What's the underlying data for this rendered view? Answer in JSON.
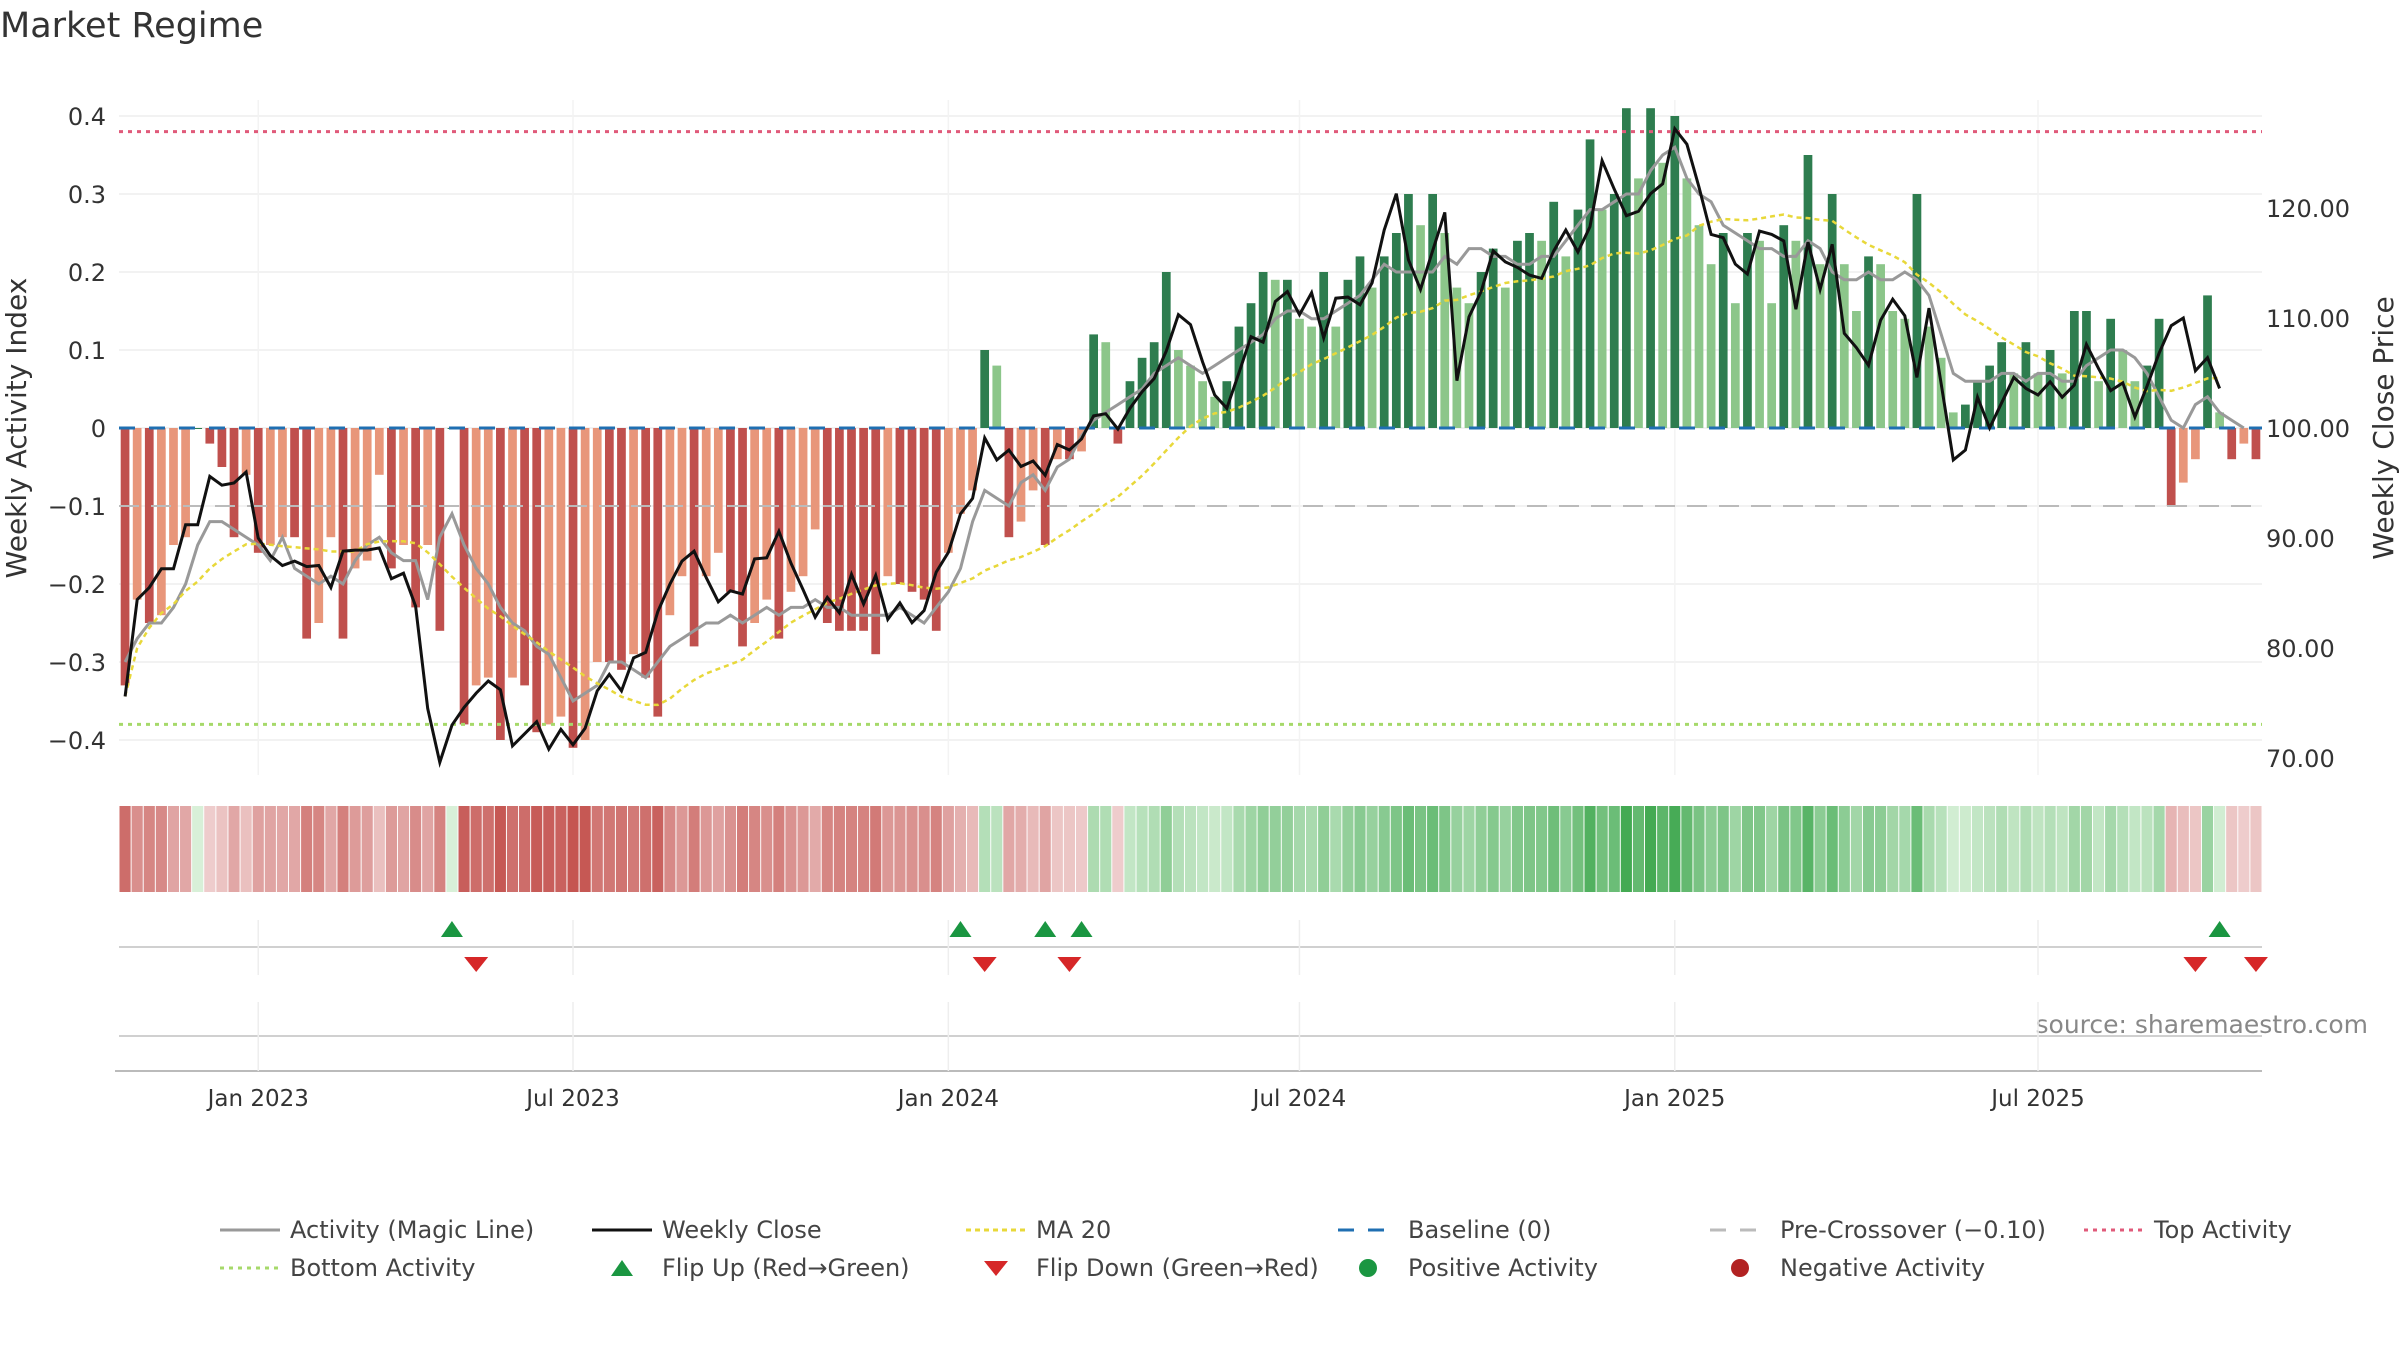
{
  "chart_data": {
    "type": "bar",
    "title": "Market Regime",
    "source": "source: sharemaestro.com",
    "left_axis": {
      "label": "Weekly Activity Index",
      "ticks": [
        "0.4",
        "0.3",
        "0.2",
        "0.1",
        "0",
        "−0.1",
        "−0.2",
        "−0.3",
        "−0.4"
      ],
      "range": [
        -0.45,
        0.45
      ]
    },
    "right_axis": {
      "label": "Weekly Close Price",
      "ticks": [
        "120.00",
        "110.00",
        "100.00",
        "90.00",
        "80.00",
        "70.00"
      ],
      "range": [
        64.8,
        130.8
      ]
    },
    "x_ticks": [
      "Jan 2023",
      "Jul 2023",
      "Jan 2024",
      "Jul 2024",
      "Jan 2025",
      "Jul 2025"
    ],
    "reference_lines": {
      "top_activity": 0.38,
      "bottom_activity": -0.38,
      "pre_crossover": -0.1,
      "baseline": 0
    },
    "colors": {
      "neg_dark": "#c0504d",
      "neg_light": "#e8967a",
      "pos_dark": "#2e7d4f",
      "pos_light": "#8cc68a",
      "close": "#111111",
      "magic": "#999999",
      "ma": "#e8d83a",
      "baseline": "#1f6fb2",
      "top": "#e05a7a",
      "bottom": "#a6d96a",
      "flip_up": "#1a9641",
      "flip_down": "#d62728"
    },
    "activity": [
      -0.33,
      -0.22,
      -0.25,
      -0.24,
      -0.15,
      -0.14,
      0.0,
      -0.02,
      -0.05,
      -0.14,
      -0.06,
      -0.16,
      -0.15,
      -0.14,
      -0.14,
      -0.27,
      -0.25,
      -0.14,
      -0.27,
      -0.18,
      -0.17,
      -0.06,
      -0.18,
      -0.15,
      -0.23,
      -0.15,
      -0.26,
      0.0,
      -0.38,
      -0.33,
      -0.32,
      -0.4,
      -0.32,
      -0.33,
      -0.39,
      -0.38,
      -0.37,
      -0.41,
      -0.4,
      -0.3,
      -0.3,
      -0.31,
      -0.29,
      -0.32,
      -0.37,
      -0.24,
      -0.19,
      -0.28,
      -0.19,
      -0.16,
      -0.21,
      -0.28,
      -0.25,
      -0.22,
      -0.27,
      -0.21,
      -0.19,
      -0.13,
      -0.25,
      -0.26,
      -0.26,
      -0.26,
      -0.29,
      -0.19,
      -0.2,
      -0.21,
      -0.22,
      -0.26,
      -0.16,
      -0.11,
      -0.08,
      0.1,
      0.08,
      -0.14,
      -0.12,
      -0.08,
      -0.15,
      -0.04,
      -0.04,
      -0.03,
      0.12,
      0.11,
      -0.02,
      0.06,
      0.09,
      0.11,
      0.2,
      0.1,
      0.08,
      0.06,
      0.04,
      0.06,
      0.13,
      0.16,
      0.2,
      0.19,
      0.19,
      0.14,
      0.13,
      0.2,
      0.13,
      0.19,
      0.22,
      0.18,
      0.22,
      0.25,
      0.3,
      0.26,
      0.3,
      0.25,
      0.18,
      0.16,
      0.2,
      0.23,
      0.18,
      0.24,
      0.25,
      0.24,
      0.29,
      0.22,
      0.28,
      0.37,
      0.28,
      0.3,
      0.41,
      0.32,
      0.41,
      0.34,
      0.4,
      0.32,
      0.26,
      0.21,
      0.25,
      0.16,
      0.25,
      0.24,
      0.16,
      0.26,
      0.24,
      0.35,
      0.21,
      0.3,
      0.21,
      0.15,
      0.22,
      0.21,
      0.15,
      0.14,
      0.3,
      0.13,
      0.09,
      0.02,
      0.03,
      0.06,
      0.08,
      0.11,
      0.07,
      0.11,
      0.07,
      0.1,
      0.07,
      0.15,
      0.15,
      0.06,
      0.14,
      0.1,
      0.06,
      0.08,
      0.14,
      -0.1,
      -0.07,
      -0.04,
      0.17,
      0.02,
      -0.04,
      -0.02,
      -0.04
    ],
    "weekly_close": [
      75.6,
      84.4,
      85.5,
      87.2,
      87.2,
      91.2,
      91.2,
      95.6,
      94.8,
      95.0,
      96.0,
      90.0,
      88.4,
      87.5,
      87.9,
      87.4,
      87.5,
      85.5,
      88.8,
      88.9,
      88.9,
      89.1,
      86.3,
      86.8,
      83.8,
      74.5,
      69.6,
      73.0,
      74.6,
      75.9,
      77.0,
      76.2,
      71.1,
      72.2,
      73.3,
      70.8,
      72.6,
      71.2,
      72.7,
      76.1,
      77.6,
      76.1,
      79.1,
      79.6,
      83.3,
      85.8,
      87.9,
      88.8,
      86.4,
      84.2,
      85.2,
      84.9,
      88.1,
      88.2,
      90.6,
      87.7,
      85.3,
      82.8,
      84.6,
      83.2,
      86.7,
      84.0,
      86.6,
      82.6,
      84.1,
      82.3,
      83.4,
      86.9,
      88.7,
      92.2,
      93.6,
      99.1,
      97.1,
      98.0,
      96.5,
      97.0,
      95.7,
      98.5,
      98.0,
      99.0,
      101.1,
      101.3,
      99.9,
      101.8,
      103.3,
      104.5,
      107.0,
      110.3,
      109.4,
      106.0,
      103.0,
      101.8,
      105.0,
      108.3,
      107.8,
      111.5,
      112.4,
      110.3,
      112.3,
      108.2,
      111.8,
      111.9,
      111.2,
      113.2,
      118.0,
      121.3,
      115.3,
      112.6,
      116.1,
      119.6,
      104.3,
      110.1,
      112.4,
      116.1,
      115.1,
      114.6,
      113.9,
      113.6,
      116.1,
      118.0,
      116.0,
      118.3,
      124.3,
      121.7,
      119.3,
      119.7,
      121.3,
      122.2,
      127.2,
      125.8,
      121.9,
      117.6,
      117.3,
      114.9,
      114.0,
      117.9,
      117.6,
      117.0,
      110.8,
      116.9,
      112.6,
      116.7,
      108.6,
      107.3,
      105.7,
      109.8,
      111.7,
      110.2,
      104.6,
      110.9,
      104.0,
      97.1,
      98.0,
      102.8,
      100.0,
      102.3,
      104.6,
      103.6,
      103.0,
      104.2,
      102.8,
      103.9,
      107.6,
      105.4,
      103.4,
      104.1,
      101.0,
      103.8,
      106.8,
      109.3,
      110.0,
      105.2,
      106.4,
      103.6
    ],
    "magic_line": [
      -0.3,
      -0.27,
      -0.25,
      -0.25,
      -0.23,
      -0.2,
      -0.15,
      -0.12,
      -0.12,
      -0.13,
      -0.14,
      -0.15,
      -0.17,
      -0.14,
      -0.18,
      -0.19,
      -0.2,
      -0.19,
      -0.2,
      -0.17,
      -0.15,
      -0.14,
      -0.16,
      -0.17,
      -0.17,
      -0.22,
      -0.14,
      -0.11,
      -0.15,
      -0.18,
      -0.2,
      -0.23,
      -0.25,
      -0.26,
      -0.28,
      -0.29,
      -0.32,
      -0.35,
      -0.34,
      -0.33,
      -0.3,
      -0.3,
      -0.31,
      -0.32,
      -0.3,
      -0.28,
      -0.27,
      -0.26,
      -0.25,
      -0.25,
      -0.24,
      -0.25,
      -0.24,
      -0.23,
      -0.24,
      -0.23,
      -0.23,
      -0.22,
      -0.23,
      -0.23,
      -0.24,
      -0.24,
      -0.24,
      -0.24,
      -0.23,
      -0.24,
      -0.25,
      -0.23,
      -0.21,
      -0.18,
      -0.12,
      -0.08,
      -0.09,
      -0.1,
      -0.07,
      -0.06,
      -0.08,
      -0.05,
      -0.04,
      -0.01,
      0.01,
      0.02,
      0.03,
      0.04,
      0.05,
      0.07,
      0.08,
      0.09,
      0.08,
      0.07,
      0.08,
      0.09,
      0.1,
      0.11,
      0.12,
      0.14,
      0.15,
      0.15,
      0.14,
      0.14,
      0.15,
      0.16,
      0.17,
      0.19,
      0.21,
      0.2,
      0.2,
      0.2,
      0.2,
      0.22,
      0.21,
      0.23,
      0.23,
      0.22,
      0.22,
      0.21,
      0.21,
      0.22,
      0.22,
      0.24,
      0.26,
      0.28,
      0.28,
      0.29,
      0.3,
      0.3,
      0.33,
      0.35,
      0.36,
      0.32,
      0.3,
      0.29,
      0.26,
      0.25,
      0.24,
      0.23,
      0.23,
      0.22,
      0.22,
      0.24,
      0.23,
      0.2,
      0.19,
      0.19,
      0.2,
      0.19,
      0.19,
      0.2,
      0.19,
      0.17,
      0.12,
      0.07,
      0.06,
      0.06,
      0.06,
      0.07,
      0.07,
      0.06,
      0.07,
      0.07,
      0.06,
      0.06,
      0.08,
      0.09,
      0.1,
      0.1,
      0.09,
      0.07,
      0.04,
      0.01,
      0.0,
      0.03,
      0.04,
      0.02,
      0.01,
      0.0
    ]
  },
  "flips": {
    "up_weeks": [
      27,
      69,
      76,
      79,
      173
    ],
    "down_weeks": [
      29,
      71,
      78,
      171,
      176
    ]
  },
  "legend": [
    {
      "label": "Activity (Magic Line)",
      "symbol": "line-gray"
    },
    {
      "label": "Weekly Close",
      "symbol": "line-black"
    },
    {
      "label": "MA 20",
      "symbol": "dotted-yellow"
    },
    {
      "label": "Baseline (0)",
      "symbol": "dashed-blue"
    },
    {
      "label": "Pre-Crossover (−0.10)",
      "symbol": "dashed-gray"
    },
    {
      "label": "Top Activity",
      "symbol": "dotted-pink"
    },
    {
      "label": "Bottom Activity",
      "symbol": "dotted-green"
    },
    {
      "label": "Flip Up (Red→Green)",
      "symbol": "triangle-up"
    },
    {
      "label": "Flip Down (Green→Red)",
      "symbol": "triangle-down"
    },
    {
      "label": "Positive Activity",
      "symbol": "circle-green"
    },
    {
      "label": "Negative Activity",
      "symbol": "circle-red"
    }
  ]
}
